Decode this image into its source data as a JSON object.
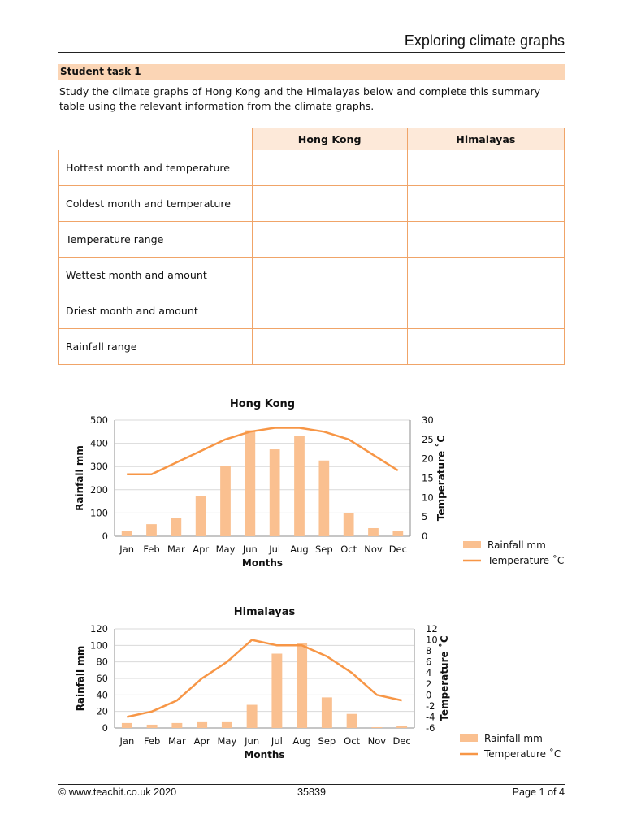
{
  "header": {
    "title": "Exploring climate graphs"
  },
  "task": {
    "heading": "Student task 1",
    "intro": "Study the climate graphs of Hong Kong and the Himalayas below and complete this summary table using the relevant information from the climate graphs."
  },
  "summary_table": {
    "columns": [
      "Hong Kong",
      "Himalayas"
    ],
    "rows": [
      "Hottest month and temperature",
      "Coldest month and temperature",
      "Temperature range",
      "Wettest month and amount",
      "Driest month and amount",
      "Rainfall range"
    ]
  },
  "colors": {
    "bar": "#fac090",
    "line": "#f79646",
    "accent_bg": "#fbd5b5",
    "table_border": "#f0a468"
  },
  "chart_data": [
    {
      "type": "bar",
      "title": "Hong Kong",
      "xlabel": "Months",
      "ylabel": "Rainfall mm",
      "y2label": "Temperature ˚C",
      "categories": [
        "Jan",
        "Feb",
        "Mar",
        "Apr",
        "May",
        "Jun",
        "Jul",
        "Aug",
        "Sep",
        "Oct",
        "Nov",
        "Dec"
      ],
      "ylim": [
        0,
        500
      ],
      "yticks": [
        "0",
        "100",
        "200",
        "300",
        "400",
        "500"
      ],
      "y2lim": [
        0,
        30
      ],
      "y2ticks": [
        "0",
        "5",
        "10",
        "15",
        "20",
        "25",
        "30"
      ],
      "grid": true,
      "legend": "bottom-right",
      "series": [
        {
          "name": "Rainfall mm",
          "type": "bar",
          "axis": "left",
          "values": [
            23,
            52,
            77,
            172,
            303,
            456,
            374,
            433,
            326,
            98,
            35,
            24
          ]
        },
        {
          "name": "Temperature ˚C",
          "type": "line",
          "axis": "right",
          "values": [
            16,
            16,
            19,
            22,
            25,
            27,
            28,
            28,
            27,
            25,
            21,
            17
          ]
        }
      ]
    },
    {
      "type": "bar",
      "title": "Himalayas",
      "xlabel": "Months",
      "ylabel": "Rainfall mm",
      "y2label": "Temperature ˚C",
      "categories": [
        "Jan",
        "Feb",
        "Mar",
        "Apr",
        "May",
        "Jun",
        "Jul",
        "Aug",
        "Sep",
        "Oct",
        "Nov",
        "Dec"
      ],
      "ylim": [
        0,
        120
      ],
      "yticks": [
        "0",
        "20",
        "40",
        "60",
        "80",
        "100",
        "120"
      ],
      "y2lim": [
        -6,
        12
      ],
      "y2ticks": [
        "-6",
        "-4",
        "-2",
        "0",
        "2",
        "4",
        "6",
        "8",
        "10",
        "12"
      ],
      "grid": true,
      "legend": "bottom-right",
      "series": [
        {
          "name": "Rainfall mm",
          "type": "bar",
          "axis": "left",
          "values": [
            6,
            4,
            6,
            7,
            7,
            28,
            90,
            103,
            37,
            17,
            1,
            2
          ]
        },
        {
          "name": "Temperature ˚C",
          "type": "line",
          "axis": "right",
          "values": [
            -4,
            -3,
            -1,
            3,
            6,
            10,
            9,
            9,
            7,
            4,
            0,
            -1
          ]
        }
      ]
    }
  ],
  "footer": {
    "left": "© www.teachit.co.uk 2020",
    "center": "35839",
    "right": "Page 1 of 4"
  }
}
